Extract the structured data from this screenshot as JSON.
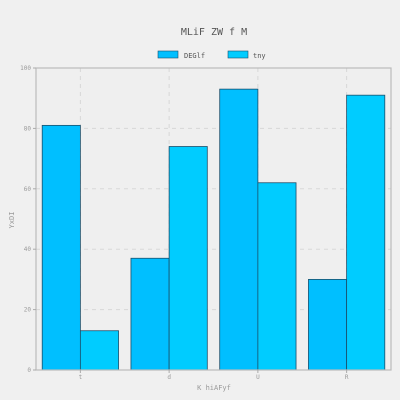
{
  "chart_data": {
    "type": "bar",
    "title": "MLiF ZW f  M",
    "xlabel": "K hiAFyf",
    "ylabel": "YxDI",
    "categories": [
      "t",
      "d",
      "U",
      "R"
    ],
    "series": [
      {
        "name": "DEGlf",
        "values": [
          81,
          37,
          93,
          30
        ],
        "color": "#00bfff",
        "edge": "#1a4f6b"
      },
      {
        "name": "tny",
        "values": [
          13,
          74,
          62,
          91
        ],
        "color": "#00ccff",
        "edge": "#1a4f6b"
      }
    ],
    "ylim": [
      0,
      100
    ],
    "yticks": [
      0,
      20,
      40,
      60,
      80,
      100
    ],
    "grid": true,
    "legend_position": "top-center"
  }
}
